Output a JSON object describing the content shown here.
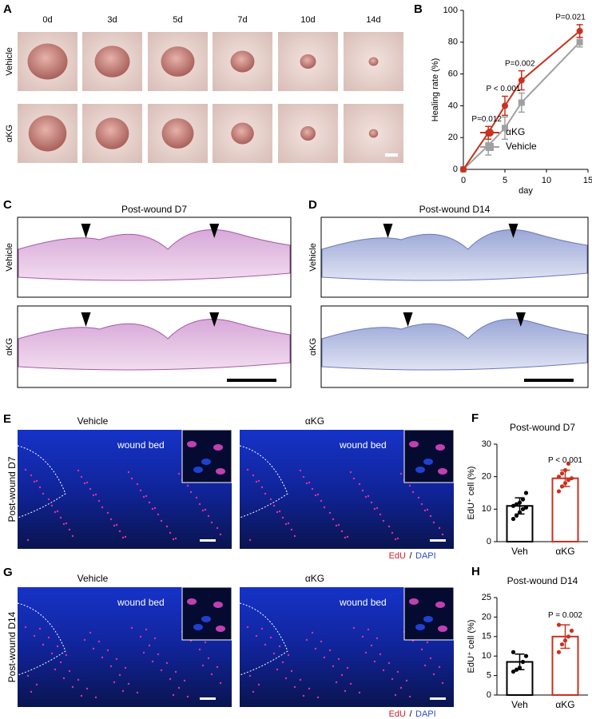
{
  "panels": {
    "A": {
      "label": "A",
      "columns": [
        "0d",
        "3d",
        "5d",
        "7d",
        "10d",
        "14d"
      ],
      "rows": [
        "Vehicle",
        "αKG"
      ]
    },
    "C": {
      "label": "C",
      "title": "Post-wound D7",
      "rows": [
        "Vehicle",
        "αKG"
      ]
    },
    "D": {
      "label": "D",
      "title": "Post-wound D14",
      "rows": [
        "Vehicle",
        "αKG"
      ]
    },
    "E": {
      "label": "E",
      "columns": [
        "Vehicle",
        "αKG"
      ],
      "row": "Post-wound D7",
      "annotation": "wound bed",
      "stain": {
        "edu": "EdU",
        "sep": "/",
        "dapi": "DAPI"
      }
    },
    "G": {
      "label": "G",
      "columns": [
        "Vehicle",
        "αKG"
      ],
      "row": "Post-wound D14",
      "annotation": "wound bed",
      "stain": {
        "edu": "EdU",
        "sep": "/",
        "dapi": "DAPI"
      }
    }
  },
  "chart_data": [
    {
      "type": "line",
      "label": "B",
      "xlabel": "day",
      "ylabel": "Healing rate (%)",
      "x": [
        0,
        3,
        5,
        7,
        14
      ],
      "series": [
        {
          "name": "αKG",
          "color": "#c8321e",
          "marker": "circle",
          "values": [
            0,
            23,
            40,
            56,
            87
          ],
          "errors": [
            0,
            4,
            6,
            6,
            4
          ]
        },
        {
          "name": "Vehicle",
          "color": "#a0a0a0",
          "marker": "square",
          "values": [
            0,
            15,
            26,
            42,
            80
          ],
          "errors": [
            0,
            6,
            7,
            6,
            3
          ]
        }
      ],
      "annotations": [
        "P=0.012",
        "P < 0.001",
        "P=0.002",
        "P=0.021"
      ],
      "xlim": [
        0,
        15
      ],
      "xticks": [
        0,
        5,
        10,
        15
      ],
      "ylim": [
        0,
        100
      ],
      "yticks": [
        0,
        20,
        40,
        60,
        80,
        100
      ],
      "legend": "lower right"
    },
    {
      "type": "bar",
      "label": "F",
      "title": "Post-wound D7",
      "ylabel": "EdU⁺ cell (%)",
      "categories": [
        "Veh",
        "αKG"
      ],
      "values": [
        11,
        19.5
      ],
      "errors": [
        2.5,
        2.5
      ],
      "colors": [
        "#000000",
        "#c8321e"
      ],
      "points": [
        [
          7,
          8,
          9,
          10,
          10.5,
          11,
          11.5,
          12,
          13,
          15
        ],
        [
          15.5,
          17,
          18,
          19,
          19.5,
          20,
          21,
          22,
          24
        ]
      ],
      "annotation": "P < 0.001",
      "ylim": [
        0,
        30
      ],
      "yticks": [
        0,
        10,
        20,
        30
      ]
    },
    {
      "type": "bar",
      "label": "H",
      "title": "Post-wound D14",
      "ylabel": "EdU⁺ cell (%)",
      "categories": [
        "Veh",
        "αKG"
      ],
      "values": [
        8.5,
        15
      ],
      "errors": [
        2,
        3
      ],
      "colors": [
        "#000000",
        "#c8321e"
      ],
      "points": [
        [
          6,
          6.5,
          7,
          8.5,
          10,
          11
        ],
        [
          11,
          13,
          14,
          15,
          16.5,
          18
        ]
      ],
      "annotation": "P = 0.002",
      "ylim": [
        0,
        25
      ],
      "yticks": [
        0,
        5,
        10,
        15,
        20,
        25
      ]
    }
  ]
}
